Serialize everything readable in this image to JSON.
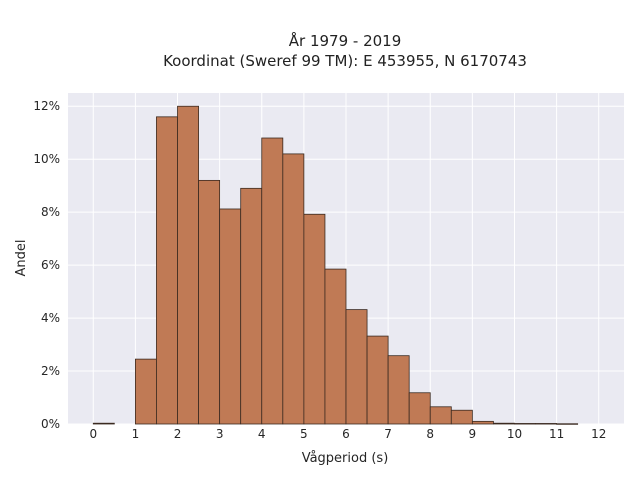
{
  "chart_data": {
    "type": "bar",
    "title": "År 1979 - 2019",
    "subtitle": "Koordinat (Sweref 99 TM): E 453955, N 6170743",
    "xlabel": "Vågperiod (s)",
    "ylabel": "Andel",
    "xlim": [
      -0.6,
      12.6
    ],
    "ylim": [
      0,
      0.125
    ],
    "xticks": [
      0,
      1,
      2,
      3,
      4,
      5,
      6,
      7,
      8,
      9,
      10,
      11,
      12
    ],
    "yticks": [
      0,
      0.02,
      0.04,
      0.06,
      0.08,
      0.1,
      0.12
    ],
    "ytick_labels": [
      "0%",
      "2%",
      "4%",
      "6%",
      "8%",
      "10%",
      "12%"
    ],
    "bin_width": 0.5,
    "bins_start": [
      0,
      1,
      1.5,
      2,
      2.5,
      3,
      3.5,
      4,
      4.5,
      5,
      5.5,
      6,
      6.5,
      7,
      7.5,
      8,
      8.5,
      9,
      9.5,
      10,
      10.5,
      11
    ],
    "values": [
      0.0003,
      0.0245,
      0.116,
      0.12,
      0.092,
      0.0812,
      0.089,
      0.108,
      0.102,
      0.0792,
      0.0585,
      0.0432,
      0.0332,
      0.0258,
      0.0118,
      0.0065,
      0.0052,
      0.001,
      0.0003,
      0.0002,
      0.0002,
      0.0001
    ],
    "grid": true,
    "colors": {
      "bar": "#c07a55",
      "bar_edge": "#3b2a20",
      "plot_bg": "#eaeaf2",
      "grid": "#ffffff"
    }
  }
}
